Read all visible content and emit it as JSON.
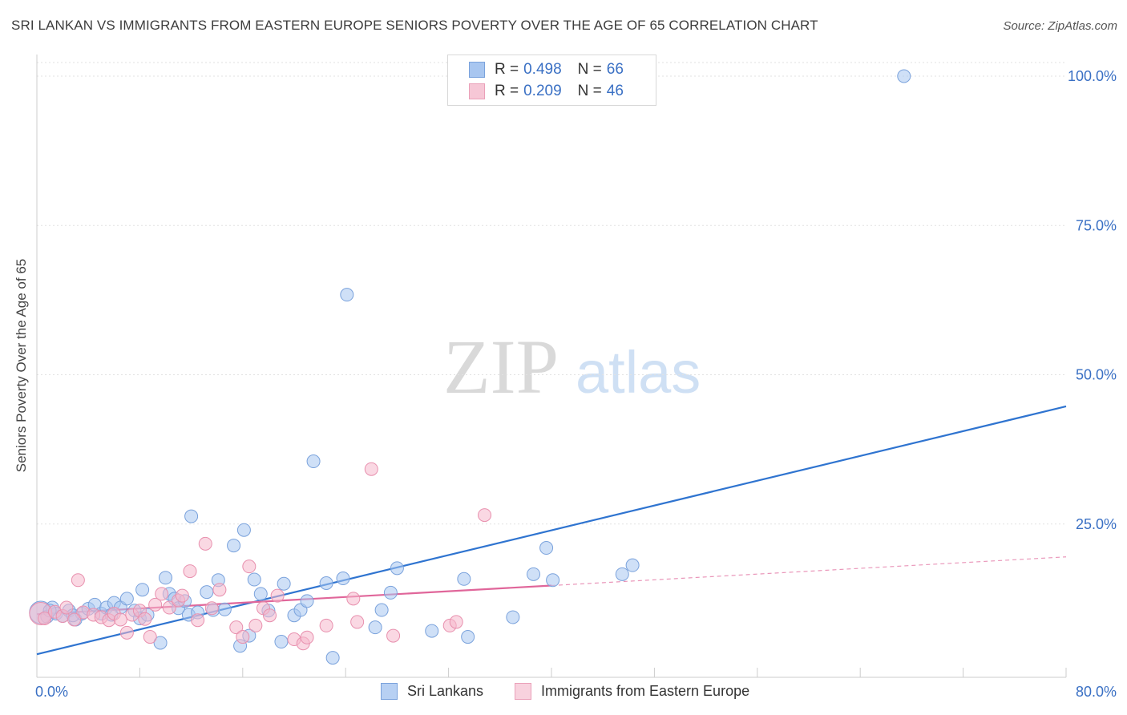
{
  "header": {
    "title": "SRI LANKAN VS IMMIGRANTS FROM EASTERN EUROPE SENIORS POVERTY OVER THE AGE OF 65 CORRELATION CHART",
    "source": "Source: ZipAtlas.com"
  },
  "watermark": {
    "zip": "ZIP",
    "atlas": "atlas"
  },
  "legend": {
    "rows": [
      {
        "r_label": "R =",
        "r_value": "0.498",
        "n_label": "N =",
        "n_value": "66"
      },
      {
        "r_label": "R =",
        "r_value": "0.209",
        "n_label": "N =",
        "n_value": "46"
      }
    ]
  },
  "bottom_legend": {
    "items": [
      "Sri Lankans",
      "Immigrants from Eastern Europe"
    ]
  },
  "colors": {
    "blue_fill": "#a8c6f0",
    "blue_stroke": "#7aa2dc",
    "blue_line": "#2f74d0",
    "pink_fill": "#f6b8cc",
    "pink_stroke": "#e890ae",
    "pink_line": "#e0669a",
    "tick_label": "#3a70c4"
  },
  "chart_data": {
    "type": "scatter",
    "title": "SRI LANKAN VS IMMIGRANTS FROM EASTERN EUROPE SENIORS POVERTY OVER THE AGE OF 65 CORRELATION CHART",
    "xlabel": "",
    "ylabel": "Seniors Poverty Over the Age of 65",
    "xlim": [
      0,
      80
    ],
    "ylim": [
      0,
      100
    ],
    "x_tick_labels": [
      "0.0%",
      "80.0%"
    ],
    "y_ticks": [
      25,
      50,
      75,
      100
    ],
    "y_tick_labels": [
      "25.0%",
      "50.0%",
      "75.0%",
      "100.0%"
    ],
    "grid": true,
    "legend_position": "top-center",
    "series": [
      {
        "name": "Sri Lankans",
        "r": 0.498,
        "n": 66,
        "trend": {
          "x": [
            0,
            80
          ],
          "y": [
            3.2,
            44.7
          ],
          "style": "solid"
        },
        "points": [
          [
            0.3,
            10.2,
            14
          ],
          [
            0.8,
            9.5,
            8
          ],
          [
            1.2,
            11.0,
            8
          ],
          [
            1.5,
            10.0,
            8
          ],
          [
            2.0,
            9.6,
            8
          ],
          [
            2.5,
            10.5,
            8
          ],
          [
            3.0,
            9.0,
            8
          ],
          [
            3.5,
            10.0,
            8
          ],
          [
            4.0,
            10.8,
            8
          ],
          [
            4.5,
            11.5,
            8
          ],
          [
            5.0,
            10.0,
            8
          ],
          [
            5.4,
            11.0,
            8
          ],
          [
            6.0,
            11.8,
            8
          ],
          [
            6.5,
            11.0,
            8
          ],
          [
            7.0,
            12.5,
            8
          ],
          [
            7.6,
            10.5,
            8
          ],
          [
            8.0,
            9.2,
            8
          ],
          [
            8.2,
            14.0,
            8
          ],
          [
            8.6,
            9.8,
            8
          ],
          [
            9.6,
            5.1,
            8
          ],
          [
            10.0,
            16.0,
            8
          ],
          [
            10.3,
            13.3,
            8
          ],
          [
            10.7,
            12.5,
            8
          ],
          [
            11.0,
            10.9,
            8
          ],
          [
            11.5,
            12.1,
            8
          ],
          [
            11.8,
            9.8,
            8
          ],
          [
            12.0,
            26.3,
            8
          ],
          [
            12.5,
            10.2,
            8
          ],
          [
            13.2,
            13.6,
            8
          ],
          [
            13.7,
            10.6,
            8
          ],
          [
            14.1,
            15.6,
            8
          ],
          [
            14.6,
            10.7,
            8
          ],
          [
            15.3,
            21.4,
            8
          ],
          [
            15.8,
            4.6,
            8
          ],
          [
            16.1,
            24.0,
            8
          ],
          [
            16.5,
            6.3,
            8
          ],
          [
            16.9,
            15.7,
            8
          ],
          [
            17.4,
            13.3,
            8
          ],
          [
            18.0,
            10.5,
            8
          ],
          [
            19.0,
            5.3,
            8
          ],
          [
            19.2,
            15.0,
            8
          ],
          [
            20.0,
            9.7,
            8
          ],
          [
            20.5,
            10.6,
            8
          ],
          [
            21.0,
            12.1,
            8
          ],
          [
            21.5,
            35.5,
            8
          ],
          [
            22.5,
            15.1,
            8
          ],
          [
            23.0,
            2.6,
            8
          ],
          [
            23.8,
            15.9,
            8
          ],
          [
            24.1,
            63.4,
            8
          ],
          [
            26.3,
            7.7,
            8
          ],
          [
            26.8,
            10.6,
            8
          ],
          [
            27.5,
            13.5,
            8
          ],
          [
            28.0,
            17.6,
            8
          ],
          [
            30.7,
            7.1,
            8
          ],
          [
            33.2,
            15.8,
            8
          ],
          [
            33.5,
            6.1,
            8
          ],
          [
            37.0,
            9.4,
            8
          ],
          [
            38.6,
            16.6,
            8
          ],
          [
            39.6,
            21.0,
            8
          ],
          [
            40.1,
            15.6,
            8
          ],
          [
            45.5,
            16.6,
            8
          ],
          [
            46.3,
            18.1,
            8
          ],
          [
            67.4,
            100.0,
            8
          ],
          [
            2.8,
            9.7,
            8
          ],
          [
            5.8,
            9.8,
            8
          ],
          [
            1.0,
            10.5,
            8
          ]
        ]
      },
      {
        "name": "Immigrants from Eastern Europe",
        "r": 0.209,
        "n": 46,
        "trend": {
          "x": [
            0,
            40
          ],
          "y": [
            9.9,
            14.7
          ],
          "style": "solid",
          "dashed_extension": {
            "x": [
              40,
              80
            ],
            "y": [
              14.7,
              19.5
            ]
          }
        },
        "points": [
          [
            0.3,
            10.0,
            14
          ],
          [
            0.6,
            9.2,
            8
          ],
          [
            1.4,
            10.3,
            8
          ],
          [
            2.0,
            9.6,
            8
          ],
          [
            2.3,
            11.0,
            8
          ],
          [
            3.2,
            15.6,
            8
          ],
          [
            3.6,
            10.2,
            8
          ],
          [
            4.4,
            9.8,
            8
          ],
          [
            5.0,
            9.4,
            8
          ],
          [
            5.6,
            8.9,
            8
          ],
          [
            6.0,
            10.0,
            8
          ],
          [
            6.5,
            9.0,
            8
          ],
          [
            7.0,
            6.8,
            8
          ],
          [
            7.4,
            9.8,
            8
          ],
          [
            8.0,
            10.5,
            8
          ],
          [
            8.4,
            9.1,
            8
          ],
          [
            8.8,
            6.1,
            8
          ],
          [
            9.2,
            11.5,
            8
          ],
          [
            9.7,
            13.3,
            8
          ],
          [
            10.3,
            11.0,
            8
          ],
          [
            11.0,
            12.2,
            8
          ],
          [
            11.3,
            13.0,
            8
          ],
          [
            11.9,
            17.1,
            8
          ],
          [
            12.5,
            8.9,
            8
          ],
          [
            13.1,
            21.7,
            8
          ],
          [
            13.6,
            10.9,
            8
          ],
          [
            14.2,
            14.0,
            8
          ],
          [
            15.5,
            7.7,
            8
          ],
          [
            16.0,
            6.1,
            8
          ],
          [
            16.5,
            17.9,
            8
          ],
          [
            17.0,
            8.0,
            8
          ],
          [
            17.6,
            10.9,
            8
          ],
          [
            18.1,
            9.7,
            8
          ],
          [
            18.7,
            13.0,
            8
          ],
          [
            20.0,
            5.7,
            8
          ],
          [
            20.7,
            5.0,
            8
          ],
          [
            21.0,
            6.0,
            8
          ],
          [
            22.5,
            8.0,
            8
          ],
          [
            24.6,
            12.5,
            8
          ],
          [
            24.9,
            8.6,
            8
          ],
          [
            26.0,
            34.2,
            8
          ],
          [
            27.7,
            6.3,
            8
          ],
          [
            32.1,
            8.0,
            8
          ],
          [
            32.6,
            8.6,
            8
          ],
          [
            34.8,
            26.5,
            8
          ],
          [
            2.9,
            9.0,
            8
          ]
        ]
      }
    ]
  }
}
